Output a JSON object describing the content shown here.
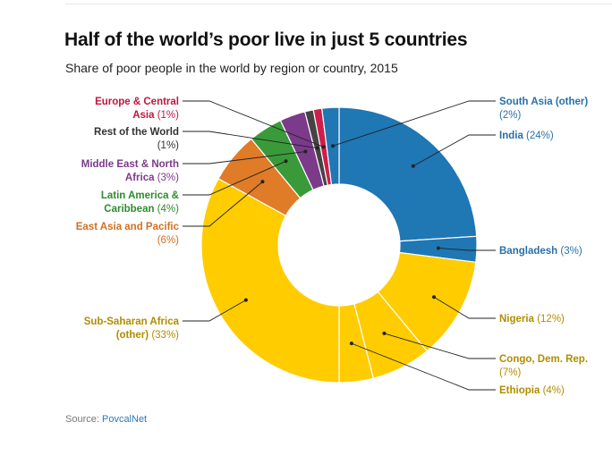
{
  "header": {
    "title": "Half of the world’s poor live in just 5 countries",
    "subtitle": "Share of poor people in the world by region or country, 2015"
  },
  "source": {
    "prefix": "Source:",
    "link_text": "PovcalNet"
  },
  "chart_data": {
    "type": "pie",
    "variant": "donut",
    "title": "Half of the world’s poor live in just 5 countries",
    "subtitle": "Share of poor people in the world by region or country, 2015",
    "slices": [
      {
        "name": "India",
        "value": 24,
        "label": "(24%)",
        "color": "#1f77b4"
      },
      {
        "name": "Bangladesh",
        "value": 3,
        "label": "(3%)",
        "color": "#1f77b4"
      },
      {
        "name": "Nigeria",
        "value": 12,
        "label": "(12%)",
        "color": "#ffcc00"
      },
      {
        "name": "Congo, Dem. Rep.",
        "value": 7,
        "label": "(7%)",
        "color": "#ffcc00"
      },
      {
        "name": "Ethiopia",
        "value": 4,
        "label": "(4%)",
        "color": "#ffcc00"
      },
      {
        "name": "Sub-Saharan Africa (other)",
        "value": 33,
        "label": "(33%)",
        "color": "#ffcc00"
      },
      {
        "name": "East Asia and Pacific",
        "value": 6,
        "label": "(6%)",
        "color": "#e07b28"
      },
      {
        "name": "Latin America & Caribbean",
        "value": 4,
        "label": "(4%)",
        "color": "#3a9a3a"
      },
      {
        "name": "Middle East & North Africa",
        "value": 3,
        "label": "(3%)",
        "color": "#7b3a8a"
      },
      {
        "name": "Rest of the World",
        "value": 1,
        "label": "(1%)",
        "color": "#444444"
      },
      {
        "name": "Europe & Central Asia",
        "value": 1,
        "label": "(1%)",
        "color": "#cc1f4a"
      },
      {
        "name": "South Asia (other)",
        "value": 2,
        "label": "(2%)",
        "color": "#1f77b4"
      }
    ],
    "label_colors": {
      "India": "#2a6fa8",
      "Bangladesh": "#2a6fa8",
      "Nigeria": "#b08d00",
      "Congo, Dem. Rep.": "#b08d00",
      "Ethiopia": "#b08d00",
      "Sub-Saharan Africa (other)": "#b08d00",
      "East Asia and Pacific": "#d07020",
      "Latin America & Caribbean": "#2e8b2e",
      "Middle East & North Africa": "#7b3a8a",
      "Rest of the World": "#333333",
      "Europe & Central Asia": "#c0163f",
      "South Asia (other)": "#2a6fa8"
    }
  }
}
